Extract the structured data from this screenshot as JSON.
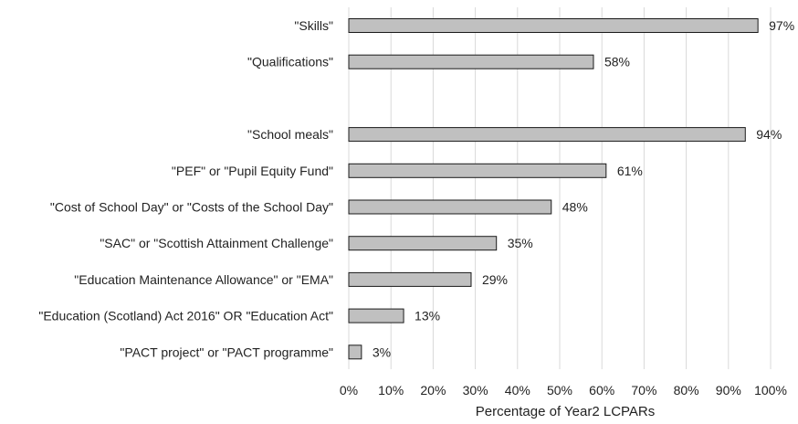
{
  "chart_data": {
    "type": "bar",
    "orientation": "horizontal",
    "xlabel": "Percentage of Year2 LCPARs",
    "xlim": [
      0,
      100
    ],
    "x_ticks": [
      "0%",
      "10%",
      "20%",
      "30%",
      "40%",
      "50%",
      "60%",
      "70%",
      "80%",
      "90%",
      "100%"
    ],
    "grid": true,
    "categories": [
      "\"Skills\"",
      "\"Qualifications\"",
      "",
      "\"School meals\"",
      "\"PEF\" or \"Pupil Equity Fund\"",
      "\"Cost of School Day\" or \"Costs of the School Day\"",
      "\"SAC\" or \"Scottish Attainment Challenge\"",
      "\"Education Maintenance Allowance\" or \"EMA\"",
      "\"Education (Scotland) Act 2016\" OR \"Education Act\"",
      "\"PACT project\" or \"PACT programme\""
    ],
    "values": [
      97,
      58,
      null,
      94,
      61,
      48,
      35,
      29,
      13,
      3
    ],
    "value_labels": [
      "97%",
      "58%",
      "",
      "94%",
      "61%",
      "48%",
      "35%",
      "29%",
      "13%",
      "3%"
    ],
    "bar_color": "#c0c0c0",
    "bar_edge_color": "#1a1a1a",
    "grid_color": "#d9d9d9"
  }
}
